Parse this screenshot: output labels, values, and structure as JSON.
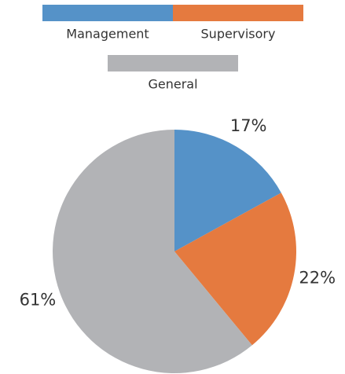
{
  "chart_data": {
    "type": "pie",
    "categories": [
      "Management",
      "Supervisory",
      "General"
    ],
    "values": [
      17,
      22,
      61
    ],
    "value_labels": [
      "17%",
      "22%",
      "61%"
    ],
    "colors": [
      "#5592c8",
      "#e57a3f",
      "#b2b3b6"
    ],
    "legend": "top"
  }
}
